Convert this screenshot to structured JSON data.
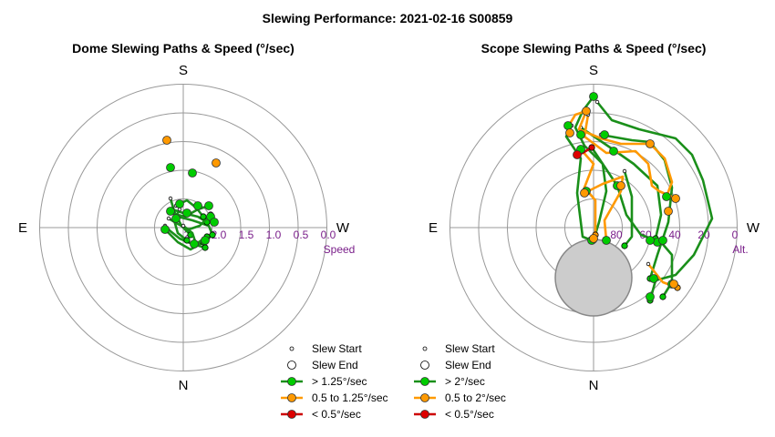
{
  "page_title": "Slewing Performance: 2021-02-16 S00859",
  "legend_colors": {
    "fast": "#00cc00",
    "medium": "#ff9900",
    "slow": "#dd0000",
    "fast_line": "#1a8f1a",
    "medium_line": "#ff9900",
    "slow_line": "#cc0000"
  },
  "chart_data": [
    {
      "type": "polar-scatter-path",
      "title": "Dome Slewing Paths & Speed (°/sec)",
      "cardinals": {
        "top": "S",
        "bottom": "N",
        "left": "E",
        "right": "W"
      },
      "radial_axis_label": "Speed",
      "radial_ticks": [
        "2",
        "2.0",
        "1.5",
        "1.0",
        "0.5",
        "0.0"
      ],
      "legend": [
        "Slew Start",
        "Slew End",
        "> 1.25°/sec",
        "0.5 to 1.25°/sec",
        "< 0.5°/sec"
      ],
      "paths": [
        {
          "speed": "fast",
          "points": [
            [
              -14,
              -32
            ],
            [
              -10,
              -18
            ],
            [
              -2,
              -2
            ],
            [
              8,
              8
            ]
          ]
        },
        {
          "speed": "fast",
          "points": [
            [
              -6,
              -12
            ],
            [
              10,
              -8
            ],
            [
              28,
              -2
            ],
            [
              32,
              8
            ]
          ]
        },
        {
          "speed": "fast",
          "points": [
            [
              -20,
              -2
            ],
            [
              -14,
              4
            ],
            [
              -4,
              12
            ],
            [
              10,
              18
            ],
            [
              24,
              22
            ]
          ]
        },
        {
          "speed": "fast",
          "points": [
            [
              -12,
              -20
            ],
            [
              0,
              -16
            ],
            [
              16,
              -12
            ],
            [
              26,
              -6
            ]
          ]
        },
        {
          "speed": "fast",
          "points": [
            [
              -16,
              -10
            ],
            [
              -6,
              -4
            ],
            [
              6,
              2
            ],
            [
              18,
              -2
            ],
            [
              30,
              -14
            ]
          ]
        },
        {
          "speed": "fast",
          "points": [
            [
              -8,
              -24
            ],
            [
              4,
              -30
            ],
            [
              14,
              -22
            ],
            [
              22,
              -12
            ]
          ]
        },
        {
          "speed": "fast",
          "points": [
            [
              -18,
              4
            ],
            [
              -6,
              16
            ],
            [
              8,
              24
            ],
            [
              22,
              16
            ]
          ]
        },
        {
          "speed": "fast",
          "points": [
            [
              -14,
              -16
            ],
            [
              2,
              -12
            ],
            [
              16,
              -20
            ],
            [
              28,
              -24
            ]
          ]
        },
        {
          "speed": "fast",
          "points": [
            [
              -4,
              -20
            ],
            [
              -10,
              -8
            ],
            [
              -6,
              6
            ],
            [
              4,
              14
            ]
          ]
        },
        {
          "speed": "fast",
          "points": [
            [
              0,
              -2
            ],
            [
              10,
              6
            ],
            [
              14,
              18
            ],
            [
              26,
              10
            ]
          ]
        }
      ],
      "points": [
        {
          "speed": "medium",
          "point": [
            -18,
            -96
          ]
        },
        {
          "speed": "medium",
          "point": [
            36,
            -71
          ]
        },
        {
          "speed": "fast",
          "point": [
            -14,
            -66
          ]
        },
        {
          "speed": "fast",
          "point": [
            10,
            -60
          ]
        },
        {
          "speed": "fast",
          "point": [
            -20,
            2
          ]
        },
        {
          "speed": "fast",
          "point": [
            -14,
            -18
          ]
        },
        {
          "speed": "fast",
          "point": [
            30,
            -12
          ]
        },
        {
          "speed": "fast",
          "point": [
            34,
            -6
          ]
        },
        {
          "speed": "fast",
          "point": [
            16,
            -24
          ]
        },
        {
          "speed": "fast",
          "point": [
            24,
            14
          ]
        },
        {
          "speed": "fast",
          "point": [
            28,
            -24
          ]
        },
        {
          "speed": "fast",
          "point": [
            -4,
            -26
          ]
        },
        {
          "speed": "fast",
          "point": [
            -8,
            -10
          ]
        },
        {
          "speed": "fast",
          "point": [
            12,
            18
          ]
        },
        {
          "speed": "fast",
          "point": [
            4,
            -16
          ]
        }
      ]
    },
    {
      "type": "polar-scatter-path",
      "title": "Scope Slewing Paths & Speed (°/sec)",
      "cardinals": {
        "top": "S",
        "bottom": "N",
        "left": "E",
        "right": "W"
      },
      "radial_axis_label": "Alt.",
      "radial_ticks": [
        "80",
        "60",
        "40",
        "20",
        "0"
      ],
      "legend": [
        "Slew Start",
        "Slew End",
        "> 2°/sec",
        "0.5 to 2°/sec",
        "< 0.5°/sec"
      ],
      "paths": [
        {
          "speed": "fast",
          "points": [
            [
              0,
              -144
            ],
            [
              -12,
              -128
            ],
            [
              -20,
              -110
            ],
            [
              -10,
              -90
            ],
            [
              10,
              -70
            ],
            [
              14,
              -40
            ],
            [
              6,
              -6
            ],
            [
              0,
              14
            ]
          ]
        },
        {
          "speed": "fast",
          "points": [
            [
              4,
              -138
            ],
            [
              20,
              -118
            ],
            [
              50,
              -108
            ],
            [
              90,
              -98
            ],
            [
              108,
              -80
            ],
            [
              120,
              -52
            ],
            [
              130,
              -10
            ],
            [
              110,
              30
            ],
            [
              90,
              52
            ],
            [
              68,
              58
            ],
            [
              62,
              80
            ]
          ]
        },
        {
          "speed": "fast",
          "points": [
            [
              -24,
              -112
            ],
            [
              -30,
              -100
            ],
            [
              -14,
              -76
            ],
            [
              -18,
              -38
            ],
            [
              -12,
              10
            ],
            [
              -2,
              14
            ]
          ]
        },
        {
          "speed": "fast",
          "points": [
            [
              8,
              -102
            ],
            [
              42,
              -96
            ],
            [
              62,
              -94
            ],
            [
              78,
              -74
            ],
            [
              86,
              -44
            ],
            [
              82,
              -6
            ],
            [
              70,
              30
            ],
            [
              62,
              56
            ]
          ]
        },
        {
          "speed": "fast",
          "points": [
            [
              -14,
              -110
            ],
            [
              24,
              -84
            ],
            [
              44,
              -70
            ],
            [
              70,
              -46
            ],
            [
              74,
              -14
            ],
            [
              68,
              12
            ]
          ]
        },
        {
          "speed": "fast",
          "points": [
            [
              -2,
              -88
            ],
            [
              26,
              -46
            ],
            [
              36,
              -14
            ],
            [
              52,
              8
            ],
            [
              74,
              16
            ],
            [
              86,
              30
            ],
            [
              86,
              60
            ],
            [
              76,
              76
            ]
          ]
        },
        {
          "speed": "fast",
          "points": [
            [
              34,
              -62
            ],
            [
              42,
              -34
            ],
            [
              42,
              10
            ],
            [
              34,
              20
            ]
          ]
        },
        {
          "speed": "medium",
          "points": [
            [
              -26,
              -114
            ],
            [
              -20,
              -124
            ],
            [
              -8,
              -128
            ],
            [
              -16,
              -108
            ],
            [
              8,
              -98
            ],
            [
              30,
              -92
            ],
            [
              62,
              -92
            ],
            [
              78,
              -76
            ],
            [
              86,
              -50
            ],
            [
              80,
              -34
            ]
          ]
        },
        {
          "speed": "medium",
          "points": [
            [
              -6,
              -124
            ],
            [
              -10,
              -100
            ],
            [
              14,
              -82
            ],
            [
              46,
              -84
            ],
            [
              60,
              -70
            ],
            [
              64,
              -46
            ],
            [
              72,
              -40
            ],
            [
              90,
              -32
            ]
          ]
        },
        {
          "speed": "medium",
          "points": [
            [
              -10,
              -38
            ],
            [
              10,
              -48
            ],
            [
              32,
              -56
            ],
            [
              30,
              -40
            ],
            [
              12,
              -8
            ],
            [
              14,
              14
            ]
          ]
        },
        {
          "speed": "medium",
          "points": [
            [
              -14,
              -86
            ],
            [
              0,
              -70
            ],
            [
              -10,
              -44
            ],
            [
              2,
              -30
            ],
            [
              2,
              8
            ]
          ]
        },
        {
          "speed": "medium",
          "points": [
            [
              60,
              40
            ],
            [
              76,
              60
            ],
            [
              92,
              66
            ]
          ]
        },
        {
          "speed": "slow",
          "points": [
            [
              -18,
              -80
            ],
            [
              -12,
              -82
            ],
            [
              -2,
              -88
            ]
          ]
        }
      ],
      "points": [
        {
          "speed": "fast",
          "point": [
            0,
            -144
          ]
        },
        {
          "speed": "fast",
          "point": [
            -28,
            -112
          ]
        },
        {
          "speed": "fast",
          "point": [
            -14,
            -102
          ]
        },
        {
          "speed": "fast",
          "point": [
            12,
            -102
          ]
        },
        {
          "speed": "fast",
          "point": [
            22,
            -84
          ]
        },
        {
          "speed": "fast",
          "point": [
            -14,
            -86
          ]
        },
        {
          "speed": "fast",
          "point": [
            26,
            -46
          ]
        },
        {
          "speed": "fast",
          "point": [
            70,
            16
          ]
        },
        {
          "speed": "fast",
          "point": [
            62,
            14
          ]
        },
        {
          "speed": "fast",
          "point": [
            76,
            14
          ]
        },
        {
          "speed": "fast",
          "point": [
            62,
            76
          ]
        },
        {
          "speed": "fast",
          "point": [
            66,
            56
          ]
        },
        {
          "speed": "fast",
          "point": [
            86,
            62
          ]
        },
        {
          "speed": "fast",
          "point": [
            -2,
            14
          ]
        },
        {
          "speed": "fast",
          "point": [
            14,
            14
          ]
        },
        {
          "speed": "fast",
          "point": [
            -8,
            -40
          ]
        },
        {
          "speed": "fast",
          "point": [
            80,
            -34
          ]
        },
        {
          "speed": "medium",
          "point": [
            -26,
            -104
          ]
        },
        {
          "speed": "medium",
          "point": [
            -8,
            -128
          ]
        },
        {
          "speed": "medium",
          "point": [
            62,
            -92
          ]
        },
        {
          "speed": "medium",
          "point": [
            30,
            -46
          ]
        },
        {
          "speed": "medium",
          "point": [
            -10,
            -38
          ]
        },
        {
          "speed": "medium",
          "point": [
            90,
            -32
          ]
        },
        {
          "speed": "medium",
          "point": [
            82,
            -18
          ]
        },
        {
          "speed": "medium",
          "point": [
            88,
            62
          ]
        },
        {
          "speed": "medium",
          "point": [
            0,
            12
          ]
        },
        {
          "speed": "slow",
          "point": [
            -18,
            -80
          ]
        }
      ]
    }
  ]
}
